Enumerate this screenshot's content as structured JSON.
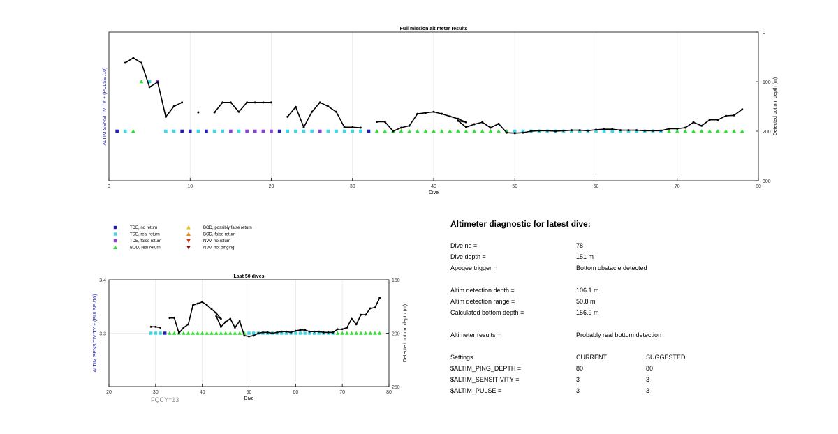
{
  "chart_data": [
    {
      "type": "scatter",
      "title": "Full mission altimeter results",
      "xlabel": "Dive",
      "ylabel_left": "ALTIM SENSITIVITY + (PULSE /10)",
      "ylabel_right": "Detected bottom depth (m)",
      "xlim": [
        0,
        80
      ],
      "ylim_right": [
        0,
        300
      ],
      "x_ticks": [
        "0",
        "10",
        "20",
        "30",
        "40",
        "50",
        "60",
        "70",
        "80"
      ],
      "y_right_ticks": [
        "0",
        "100",
        "200",
        "300"
      ],
      "grid": true,
      "segments": [
        [
          [
            2,
            62
          ],
          [
            3,
            52
          ],
          [
            4,
            62
          ],
          [
            5,
            111
          ],
          [
            6,
            101
          ],
          [
            7,
            171
          ],
          [
            8,
            150
          ],
          [
            9,
            142
          ]
        ],
        [
          [
            11,
            162
          ]
        ],
        [
          [
            13,
            162
          ],
          [
            14,
            142
          ],
          [
            15,
            142
          ],
          [
            16,
            161
          ],
          [
            17,
            142
          ],
          [
            18,
            142
          ],
          [
            19,
            142
          ],
          [
            20,
            142
          ]
        ],
        [
          [
            22,
            171
          ],
          [
            23,
            151
          ],
          [
            24,
            192
          ],
          [
            25,
            161
          ],
          [
            26,
            142
          ],
          [
            27,
            150
          ],
          [
            28,
            161
          ],
          [
            29,
            192
          ],
          [
            30,
            192
          ],
          [
            31,
            193
          ]
        ],
        [
          [
            33,
            181
          ],
          [
            34,
            181
          ],
          [
            35,
            200
          ],
          [
            36,
            193
          ],
          [
            37,
            189
          ],
          [
            38,
            165
          ],
          [
            39,
            163
          ],
          [
            40,
            161
          ],
          [
            41,
            165
          ],
          [
            42,
            170
          ],
          [
            43,
            175
          ],
          [
            44,
            182
          ],
          [
            43,
            179
          ],
          [
            44,
            192
          ],
          [
            45,
            186
          ],
          [
            46,
            182
          ],
          [
            47,
            193
          ],
          [
            48,
            185
          ],
          [
            49,
            203
          ],
          [
            50,
            204
          ],
          [
            51,
            203
          ],
          [
            52,
            200
          ],
          [
            53,
            199
          ],
          [
            54,
            199
          ],
          [
            55,
            200
          ],
          [
            56,
            199
          ],
          [
            57,
            198
          ],
          [
            58,
            198
          ],
          [
            59,
            199
          ],
          [
            60,
            197
          ],
          [
            61,
            196
          ],
          [
            62,
            196
          ],
          [
            63,
            198
          ],
          [
            64,
            198
          ],
          [
            65,
            198
          ],
          [
            66,
            199
          ],
          [
            67,
            199
          ],
          [
            68,
            199
          ],
          [
            69,
            195
          ],
          [
            70,
            195
          ],
          [
            71,
            193
          ],
          [
            72,
            182
          ],
          [
            73,
            189
          ],
          [
            74,
            177
          ],
          [
            75,
            177
          ],
          [
            76,
            169
          ],
          [
            77,
            168
          ],
          [
            78,
            156
          ]
        ]
      ],
      "markers": [
        {
          "x": 1,
          "kind": "tde_no"
        },
        {
          "x": 2,
          "kind": "tde_real"
        },
        {
          "x": 3,
          "kind": "bod_real"
        },
        {
          "x": 4,
          "kind": "bod_real",
          "level": "high"
        },
        {
          "x": 5,
          "kind": "tde_real",
          "level": "high"
        },
        {
          "x": 6,
          "kind": "tde_false",
          "level": "high"
        },
        {
          "x": 7,
          "kind": "tde_real"
        },
        {
          "x": 8,
          "kind": "tde_real"
        },
        {
          "x": 9,
          "kind": "tde_no"
        },
        {
          "x": 10,
          "kind": "tde_no"
        },
        {
          "x": 11,
          "kind": "tde_real"
        },
        {
          "x": 12,
          "kind": "tde_no"
        },
        {
          "x": 13,
          "kind": "tde_real"
        },
        {
          "x": 14,
          "kind": "tde_real"
        },
        {
          "x": 15,
          "kind": "tde_false"
        },
        {
          "x": 16,
          "kind": "tde_real"
        },
        {
          "x": 17,
          "kind": "tde_false"
        },
        {
          "x": 18,
          "kind": "tde_false"
        },
        {
          "x": 19,
          "kind": "tde_false"
        },
        {
          "x": 20,
          "kind": "tde_false"
        },
        {
          "x": 21,
          "kind": "tde_no"
        },
        {
          "x": 22,
          "kind": "tde_real"
        },
        {
          "x": 23,
          "kind": "tde_real"
        },
        {
          "x": 24,
          "kind": "tde_real"
        },
        {
          "x": 25,
          "kind": "tde_real"
        },
        {
          "x": 26,
          "kind": "tde_false"
        },
        {
          "x": 27,
          "kind": "tde_real"
        },
        {
          "x": 28,
          "kind": "tde_real"
        },
        {
          "x": 29,
          "kind": "tde_real"
        },
        {
          "x": 30,
          "kind": "tde_real"
        },
        {
          "x": 31,
          "kind": "tde_real"
        },
        {
          "x": 32,
          "kind": "tde_no"
        },
        {
          "x": 33,
          "kind": "bod_real"
        },
        {
          "x": 34,
          "kind": "bod_real"
        },
        {
          "x": 35,
          "kind": "bod_real"
        },
        {
          "x": 36,
          "kind": "bod_real"
        },
        {
          "x": 37,
          "kind": "bod_real"
        },
        {
          "x": 38,
          "kind": "bod_real"
        },
        {
          "x": 39,
          "kind": "bod_real"
        },
        {
          "x": 40,
          "kind": "bod_real"
        },
        {
          "x": 41,
          "kind": "bod_real"
        },
        {
          "x": 42,
          "kind": "bod_real"
        },
        {
          "x": 43,
          "kind": "bod_real"
        },
        {
          "x": 44,
          "kind": "bod_real"
        },
        {
          "x": 45,
          "kind": "bod_real"
        },
        {
          "x": 46,
          "kind": "bod_real"
        },
        {
          "x": 47,
          "kind": "bod_real"
        },
        {
          "x": 48,
          "kind": "bod_real"
        },
        {
          "x": 49,
          "kind": "bod_real"
        },
        {
          "x": 50,
          "kind": "tde_real"
        },
        {
          "x": 51,
          "kind": "tde_real"
        },
        {
          "x": 52,
          "kind": "tde_real"
        },
        {
          "x": 53,
          "kind": "tde_real"
        },
        {
          "x": 54,
          "kind": "tde_real"
        },
        {
          "x": 55,
          "kind": "tde_real"
        },
        {
          "x": 56,
          "kind": "tde_real"
        },
        {
          "x": 57,
          "kind": "tde_real"
        },
        {
          "x": 58,
          "kind": "tde_real"
        },
        {
          "x": 59,
          "kind": "tde_real"
        },
        {
          "x": 60,
          "kind": "tde_real"
        },
        {
          "x": 61,
          "kind": "tde_real"
        },
        {
          "x": 62,
          "kind": "tde_real"
        },
        {
          "x": 63,
          "kind": "tde_real"
        },
        {
          "x": 64,
          "kind": "tde_real"
        },
        {
          "x": 65,
          "kind": "tde_real"
        },
        {
          "x": 66,
          "kind": "tde_real"
        },
        {
          "x": 67,
          "kind": "tde_real"
        },
        {
          "x": 68,
          "kind": "tde_real"
        },
        {
          "x": 69,
          "kind": "bod_real"
        },
        {
          "x": 70,
          "kind": "bod_real"
        },
        {
          "x": 71,
          "kind": "bod_real"
        },
        {
          "x": 72,
          "kind": "bod_real"
        },
        {
          "x": 73,
          "kind": "bod_real"
        },
        {
          "x": 74,
          "kind": "bod_real"
        },
        {
          "x": 75,
          "kind": "bod_real"
        },
        {
          "x": 76,
          "kind": "bod_real"
        },
        {
          "x": 77,
          "kind": "bod_real"
        },
        {
          "x": 78,
          "kind": "bod_real"
        }
      ]
    },
    {
      "type": "scatter",
      "title": "Last 50 dives",
      "xlabel": "Dive",
      "ylabel_left": "ALTIM SENSITIVITY + (PULSE /10)",
      "ylabel_right": "Detected bottom depth (m)",
      "xlim": [
        20,
        80
      ],
      "ylim_left": [
        3.2,
        3.4
      ],
      "ylim_right": [
        150,
        250
      ],
      "x_ticks": [
        "20",
        "30",
        "40",
        "50",
        "60",
        "70",
        "80"
      ],
      "y_left_ticks": [
        "3.4",
        "3.3"
      ],
      "y_right_ticks": [
        "150",
        "200",
        "250"
      ],
      "grid": true,
      "annotation": "FQCY=13"
    }
  ],
  "legend": [
    {
      "label": "TDE, no return",
      "shape": "square",
      "color": "#1f1fb4"
    },
    {
      "label": "TDE, real return",
      "shape": "square",
      "color": "#3fd6e6"
    },
    {
      "label": "TDE, false return",
      "shape": "square",
      "color": "#8a3fd6"
    },
    {
      "label": "BOD, real return",
      "shape": "triangle-up",
      "color": "#33dd33"
    },
    {
      "label": "BOD, possibly false return",
      "shape": "triangle-up",
      "color": "#f2c21a"
    },
    {
      "label": "BOD, false return",
      "shape": "triangle-up",
      "color": "#f08c1a"
    },
    {
      "label": "NVV, no return",
      "shape": "triangle-down",
      "color": "#dd3311"
    },
    {
      "label": "NVV, not pinging",
      "shape": "triangle-down",
      "color": "#7a1111"
    }
  ],
  "diagnostic": {
    "title": "Altimeter diagnostic for latest dive:",
    "rows": [
      {
        "label": "Dive no =",
        "value": "78"
      },
      {
        "label": "Dive depth =",
        "value": "151 m"
      },
      {
        "label": "Apogee trigger =",
        "value": "Bottom obstacle detected"
      },
      {
        "label": "Altim detection depth =",
        "value": "106.1 m"
      },
      {
        "label": "Altim detection range =",
        "value": "50.8 m"
      },
      {
        "label": "Calculated bottom depth =",
        "value": "156.9 m"
      },
      {
        "label": "Altimeter results =",
        "value": "Probably real bottom detection"
      }
    ],
    "settings": {
      "header": [
        "Settings",
        "CURRENT",
        "SUGGESTED"
      ],
      "rows": [
        {
          "label": "$ALTIM_PING_DEPTH =",
          "current": "80",
          "suggested": "80"
        },
        {
          "label": "$ALTIM_SENSITIVITY =",
          "current": "3",
          "suggested": "3"
        },
        {
          "label": "$ALTIM_PULSE =",
          "current": "3",
          "suggested": "3"
        }
      ]
    }
  },
  "colors": {
    "tde_no": "#1f1fb4",
    "tde_real": "#3fd6e6",
    "tde_false": "#8a3fd6",
    "bod_real": "#33dd33",
    "depth_line": "#000000",
    "left_axis_label": "#2222aa"
  }
}
